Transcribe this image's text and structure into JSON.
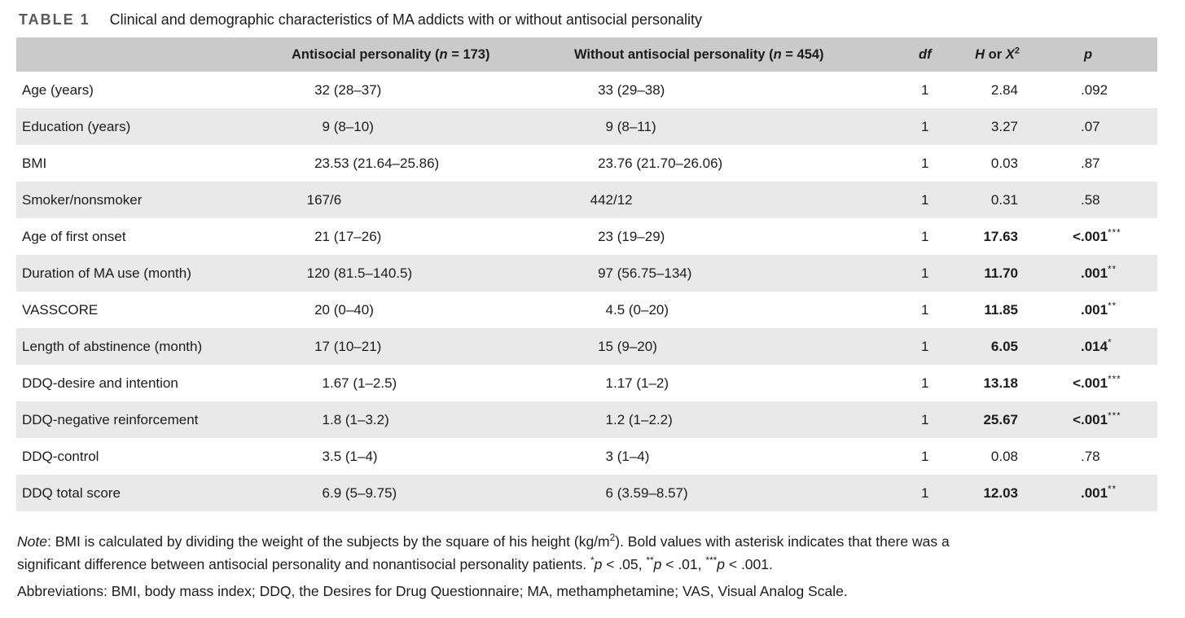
{
  "colors": {
    "header_bg": "#cacaca",
    "stripe_bg": "#e9e9e9",
    "caption_label": "#595959",
    "text": "#1c1c1c"
  },
  "table": {
    "caption": {
      "label": "TABLE 1",
      "text": "Clinical and demographic characteristics of MA addicts with or without antisocial personality"
    },
    "header": {
      "characteristic": "",
      "antisocial": {
        "pre": "Antisocial personality (",
        "n": "n",
        "post": " = 173)"
      },
      "without": {
        "pre": "Without antisocial personality (",
        "n": "n",
        "post": " = 454)"
      },
      "df": "df",
      "stat": {
        "h": "H",
        "or": " or ",
        "x": "X",
        "sup": "2"
      },
      "p": "p"
    },
    "rows": [
      {
        "label": "Age (years)",
        "antisocial": {
          "int": "32",
          "rest": " (28–37)"
        },
        "without": {
          "int": "33",
          "rest": " (29–38)"
        },
        "df": "1",
        "stat": "2.84",
        "p": {
          "prefix": "",
          "val": ".092",
          "stars": ""
        },
        "bold": false
      },
      {
        "label": "Education (years)",
        "antisocial": {
          "int": "9",
          "rest": " (8–10)"
        },
        "without": {
          "int": "9",
          "rest": " (8–11)"
        },
        "df": "1",
        "stat": "3.27",
        "p": {
          "prefix": "",
          "val": ".07",
          "stars": ""
        },
        "bold": false
      },
      {
        "label": "BMI",
        "antisocial": {
          "int": "23",
          "rest": ".53 (21.64–25.86)"
        },
        "without": {
          "int": "23",
          "rest": ".76 (21.70–26.06)"
        },
        "df": "1",
        "stat": "0.03",
        "p": {
          "prefix": "",
          "val": ".87",
          "stars": ""
        },
        "bold": false
      },
      {
        "label": "Smoker/nonsmoker",
        "antisocial": {
          "int": "167",
          "rest": "/6"
        },
        "without": {
          "int": "442",
          "rest": "/12"
        },
        "df": "1",
        "stat": "0.31",
        "p": {
          "prefix": "",
          "val": ".58",
          "stars": ""
        },
        "bold": false
      },
      {
        "label": "Age of first onset",
        "antisocial": {
          "int": "21",
          "rest": " (17–26)"
        },
        "without": {
          "int": "23",
          "rest": " (19–29)"
        },
        "df": "1",
        "stat": "17.63",
        "p": {
          "prefix": "<",
          "val": ".001",
          "stars": "***"
        },
        "bold": true
      },
      {
        "label": "Duration of MA use (month)",
        "antisocial": {
          "int": "120",
          "rest": " (81.5–140.5)"
        },
        "without": {
          "int": "97",
          "rest": " (56.75–134)"
        },
        "df": "1",
        "stat": "11.70",
        "p": {
          "prefix": "",
          "val": ".001",
          "stars": "**"
        },
        "bold": true
      },
      {
        "label": "VASSCORE",
        "antisocial": {
          "int": "20",
          "rest": " (0–40)"
        },
        "without": {
          "int": "4",
          "rest": ".5 (0–20)"
        },
        "df": "1",
        "stat": "11.85",
        "p": {
          "prefix": "",
          "val": ".001",
          "stars": "**"
        },
        "bold": true
      },
      {
        "label": "Length of abstinence (month)",
        "antisocial": {
          "int": "17",
          "rest": " (10–21)"
        },
        "without": {
          "int": "15",
          "rest": " (9–20)"
        },
        "df": "1",
        "stat": "6.05",
        "p": {
          "prefix": "",
          "val": ".014",
          "stars": "*"
        },
        "bold": true
      },
      {
        "label": "DDQ-desire and intention",
        "antisocial": {
          "int": "1",
          "rest": ".67 (1–2.5)"
        },
        "without": {
          "int": "1",
          "rest": ".17 (1–2)"
        },
        "df": "1",
        "stat": "13.18",
        "p": {
          "prefix": "<",
          "val": ".001",
          "stars": "***"
        },
        "bold": true
      },
      {
        "label": "DDQ-negative reinforcement",
        "antisocial": {
          "int": "1",
          "rest": ".8 (1–3.2)"
        },
        "without": {
          "int": "1",
          "rest": ".2 (1–2.2)"
        },
        "df": "1",
        "stat": "25.67",
        "p": {
          "prefix": "<",
          "val": ".001",
          "stars": "***"
        },
        "bold": true
      },
      {
        "label": "DDQ-control",
        "antisocial": {
          "int": "3",
          "rest": ".5 (1–4)"
        },
        "without": {
          "int": "3",
          "rest": " (1–4)"
        },
        "df": "1",
        "stat": "0.08",
        "p": {
          "prefix": "",
          "val": ".78",
          "stars": ""
        },
        "bold": false
      },
      {
        "label": "DDQ total score",
        "antisocial": {
          "int": "6",
          "rest": ".9 (5–9.75)"
        },
        "without": {
          "int": "6",
          "rest": " (3.59–8.57)"
        },
        "df": "1",
        "stat": "12.03",
        "p": {
          "prefix": "",
          "val": ".001",
          "stars": "**"
        },
        "bold": true
      }
    ]
  },
  "notes": {
    "note_label": "Note",
    "note_p1": ": BMI is calculated by dividing the weight of the subjects by the square of his height (kg/m",
    "note_sup1": "2",
    "note_p2a": "). Bold values with asterisk indicates that there was a",
    "note_p2b": "significant difference between antisocial personality and nonantisocial personality patients. ",
    "sig": [
      {
        "stars": "*",
        "p": "p",
        "text": " < .05, "
      },
      {
        "stars": "**",
        "p": "p",
        "text": " < .01, "
      },
      {
        "stars": "***",
        "p": "p",
        "text": " < .001."
      }
    ],
    "abbreviations": "Abbreviations: BMI, body mass index; DDQ, the Desires for Drug Questionnaire; MA, methamphetamine; VAS, Visual Analog Scale."
  }
}
